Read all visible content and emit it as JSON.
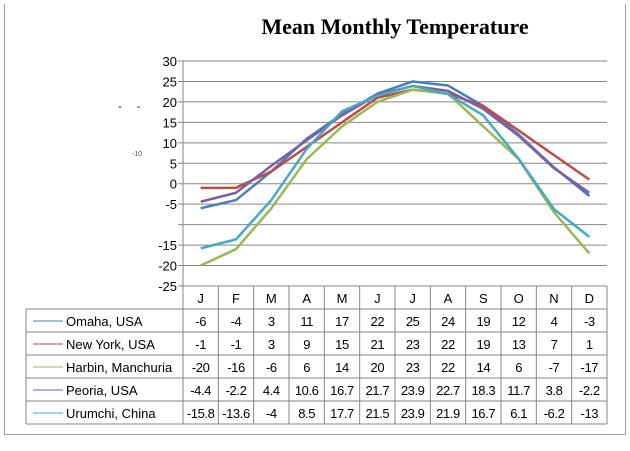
{
  "chart_data": {
    "type": "line",
    "title": "Mean Monthly Temperature",
    "categories": [
      "J",
      "F",
      "M",
      "A",
      "M",
      "J",
      "J",
      "A",
      "S",
      "O",
      "N",
      "D"
    ],
    "ylim": [
      -25,
      30
    ],
    "yticks": [
      "30",
      "25",
      "20",
      "15",
      "10",
      "5",
      "0",
      "-5",
      "",
      "-15",
      "-20",
      "-25"
    ],
    "stray_label": "-10",
    "stray_marks": "- -",
    "grid": true,
    "legend": "data table",
    "series": [
      {
        "name": "Omaha, USA",
        "color": "#4a7ebb",
        "values": [
          -6,
          -4,
          3,
          11,
          17,
          22,
          25,
          24,
          19,
          12,
          4,
          -3
        ]
      },
      {
        "name": "New York, USA",
        "color": "#be4b48",
        "values": [
          -1,
          -1,
          3,
          9,
          15,
          21,
          23,
          22,
          19,
          13,
          7,
          1
        ]
      },
      {
        "name": "Harbin, Manchuria",
        "color": "#98b954",
        "values": [
          -20,
          -16,
          -6,
          6,
          14,
          20,
          23,
          22,
          14,
          6,
          -7,
          -17
        ]
      },
      {
        "name": "Peoria, USA",
        "color": "#7d60a0",
        "values": [
          -4.4,
          -2.2,
          4.4,
          10.6,
          16.7,
          21.7,
          23.9,
          22.7,
          18.3,
          11.7,
          3.8,
          -2.2
        ]
      },
      {
        "name": "Urumchi, China",
        "color": "#46aac5",
        "values": [
          -15.8,
          -13.6,
          -4,
          8.5,
          17.7,
          21.5,
          23.9,
          21.9,
          16.7,
          6.1,
          -6.2,
          -13
        ]
      }
    ]
  }
}
